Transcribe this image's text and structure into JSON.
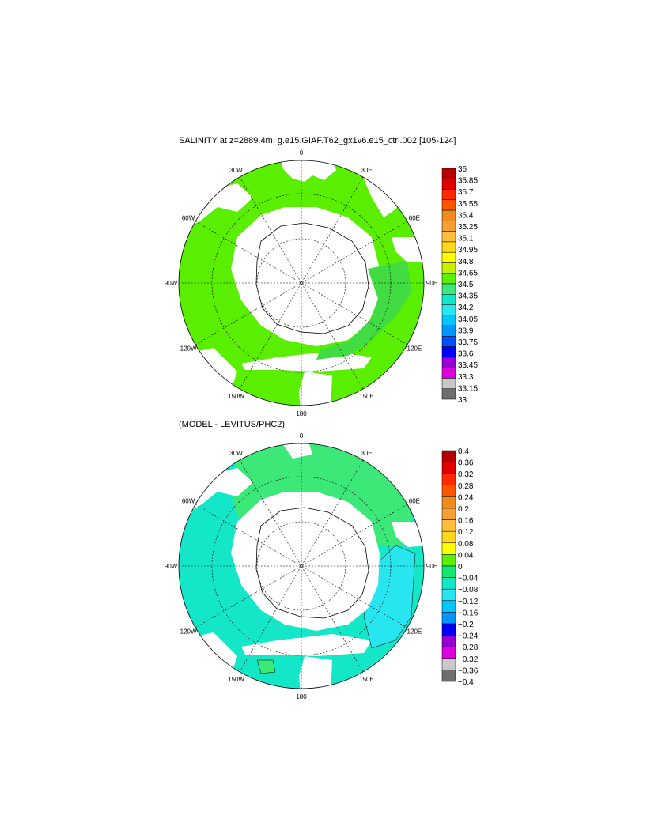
{
  "panels": [
    {
      "title": "SALINITY at z=2889.4m, g.e15.GIAF.T62_gx1v6.e15_ctrl.002 [105-124]",
      "lon_labels": [
        "0",
        "30E",
        "60E",
        "90E",
        "120E",
        "150E",
        "180",
        "150W",
        "120W",
        "90W",
        "60W",
        "30W"
      ],
      "colorbar": {
        "labels": [
          "36",
          "35.85",
          "35.7",
          "35.55",
          "35.4",
          "35.25",
          "35.1",
          "34.95",
          "34.8",
          "34.65",
          "34.5",
          "34.35",
          "34.2",
          "34.05",
          "33.9",
          "33.75",
          "33.6",
          "33.45",
          "33.3",
          "33.15",
          "33"
        ],
        "colors": [
          "#b40000",
          "#e00000",
          "#ff2a00",
          "#ff5500",
          "#f08c1e",
          "#f5a032",
          "#ffbe3c",
          "#ffd71e",
          "#ffff00",
          "#c8f000",
          "#5af000",
          "#3ce878",
          "#14e6c8",
          "#28e6f0",
          "#00c8ff",
          "#0096ff",
          "#0050ff",
          "#0000ff",
          "#9600d2",
          "#dc00dc",
          "#c8c8c8",
          "#6e6e6e"
        ]
      },
      "fill": {
        "ocean": "#5aee00",
        "coast_band": "#41dc41"
      }
    },
    {
      "title": "(MODEL - LEVITUS/PHC2)",
      "lon_labels": [
        "0",
        "30E",
        "60E",
        "90E",
        "120E",
        "150E",
        "180",
        "150W",
        "120W",
        "90W",
        "60W",
        "30W"
      ],
      "colorbar": {
        "labels": [
          "0.4",
          "0.36",
          "0.32",
          "0.28",
          "0.24",
          "0.2",
          "0.16",
          "0.12",
          "0.08",
          "0.04",
          "0",
          "−0.04",
          "−0.08",
          "−0.12",
          "−0.16",
          "−0.2",
          "−0.24",
          "−0.28",
          "−0.32",
          "−0.36",
          "−0.4"
        ],
        "colors": [
          "#b40000",
          "#e00000",
          "#ff2a00",
          "#ff5500",
          "#f08c1e",
          "#f5a032",
          "#ffbe3c",
          "#ffd71e",
          "#ffff00",
          "#5af000",
          "#14e670",
          "#14e6c8",
          "#28e6f0",
          "#00c8ff",
          "#0096ff",
          "#0000ff",
          "#9600d2",
          "#dc00dc",
          "#c8c8c8",
          "#6e6e6e"
        ]
      },
      "fill": {
        "ocean": "#14e6c8",
        "positive": "#3ce878",
        "negative": "#28e6f0"
      }
    }
  ]
}
